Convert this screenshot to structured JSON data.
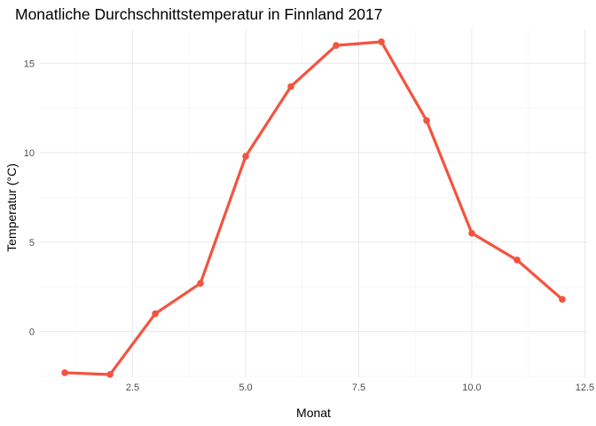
{
  "chart_data": {
    "type": "line",
    "title": "Monatliche Durchschnittstemperatur in Finnland 2017",
    "xlabel": "Monat",
    "ylabel": "Temperatur (°C)",
    "xlim": [
      0.45,
      12.55
    ],
    "ylim": [
      -2.6,
      16.9
    ],
    "x_ticks": [
      2.5,
      5.0,
      7.5,
      10.0,
      12.5
    ],
    "x_tick_labels": [
      "2.5",
      "5.0",
      "7.5",
      "10.0",
      "12.5"
    ],
    "y_ticks": [
      0,
      5,
      10,
      15
    ],
    "y_tick_labels": [
      "0",
      "5",
      "10",
      "15"
    ],
    "grid": true,
    "line_color": "#f4533f",
    "series": [
      {
        "x": [
          1,
          2,
          3,
          4,
          5,
          6,
          7,
          8,
          9,
          10,
          11,
          12
        ],
        "y": [
          -2.3,
          -2.4,
          1.0,
          2.7,
          9.8,
          13.7,
          16.0,
          16.2,
          11.8,
          5.5,
          4.0,
          1.8
        ]
      }
    ]
  }
}
